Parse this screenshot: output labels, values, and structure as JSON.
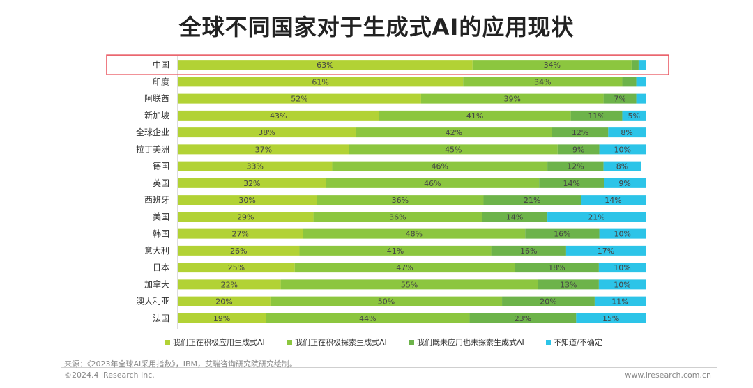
{
  "chart_data": {
    "type": "bar",
    "orientation": "horizontal",
    "stacked": true,
    "title": "全球不同国家对于生成式AI的应用现状",
    "categories": [
      "中国",
      "印度",
      "阿联酋",
      "新加坡",
      "全球企业",
      "拉丁美洲",
      "德国",
      "英国",
      "西班牙",
      "美国",
      "韩国",
      "意大利",
      "日本",
      "加拿大",
      "澳大利亚",
      "法国"
    ],
    "series": [
      {
        "name": "我们正在积极应用生成式AI",
        "color": "#b2d235",
        "values": [
          63,
          61,
          52,
          43,
          38,
          37,
          33,
          32,
          30,
          29,
          27,
          26,
          25,
          22,
          20,
          19
        ]
      },
      {
        "name": "我们正在积极探索生成式AI",
        "color": "#8cc63f",
        "values": [
          34,
          34,
          39,
          41,
          42,
          45,
          46,
          46,
          36,
          36,
          48,
          41,
          47,
          55,
          50,
          44
        ]
      },
      {
        "name": "我们既未应用也未探索生成式AI",
        "color": "#6db34a",
        "values": [
          1.5,
          3,
          7,
          11,
          12,
          9,
          12,
          14,
          21,
          14,
          16,
          16,
          18,
          13,
          20,
          23
        ]
      },
      {
        "name": "不知道/不确定",
        "color": "#2cc4e8",
        "values": [
          1.5,
          2,
          2,
          5,
          8,
          10,
          8,
          9,
          14,
          21,
          10,
          17,
          10,
          10,
          11,
          15
        ]
      }
    ],
    "labels": [
      [
        "63%",
        "34%",
        "",
        ""
      ],
      [
        "61%",
        "34%",
        "",
        ""
      ],
      [
        "52%",
        "39%",
        "7%",
        ""
      ],
      [
        "43%",
        "41%",
        "11%",
        "5%"
      ],
      [
        "38%",
        "42%",
        "12%",
        "8%"
      ],
      [
        "37%",
        "45%",
        "9%",
        "10%"
      ],
      [
        "33%",
        "46%",
        "12%",
        "8%"
      ],
      [
        "32%",
        "46%",
        "14%",
        "9%"
      ],
      [
        "30%",
        "36%",
        "21%",
        "14%"
      ],
      [
        "29%",
        "36%",
        "14%",
        "21%"
      ],
      [
        "27%",
        "48%",
        "16%",
        "10%"
      ],
      [
        "26%",
        "41%",
        "16%",
        "17%"
      ],
      [
        "25%",
        "47%",
        "18%",
        "10%"
      ],
      [
        "22%",
        "55%",
        "13%",
        "10%"
      ],
      [
        "20%",
        "50%",
        "20%",
        "11%"
      ],
      [
        "19%",
        "44%",
        "23%",
        "15%"
      ]
    ],
    "xlim": [
      0,
      100
    ],
    "highlight_category": "中国",
    "highlight_color": "#e8505b",
    "legend_position": "bottom"
  },
  "footer": {
    "source": "来源：《2023年全球AI采用指数》，IBM，艾瑞咨询研究院研究绘制。",
    "copyright": "©2024.4 iResearch Inc.",
    "website": "www.iresearch.com.cn"
  }
}
